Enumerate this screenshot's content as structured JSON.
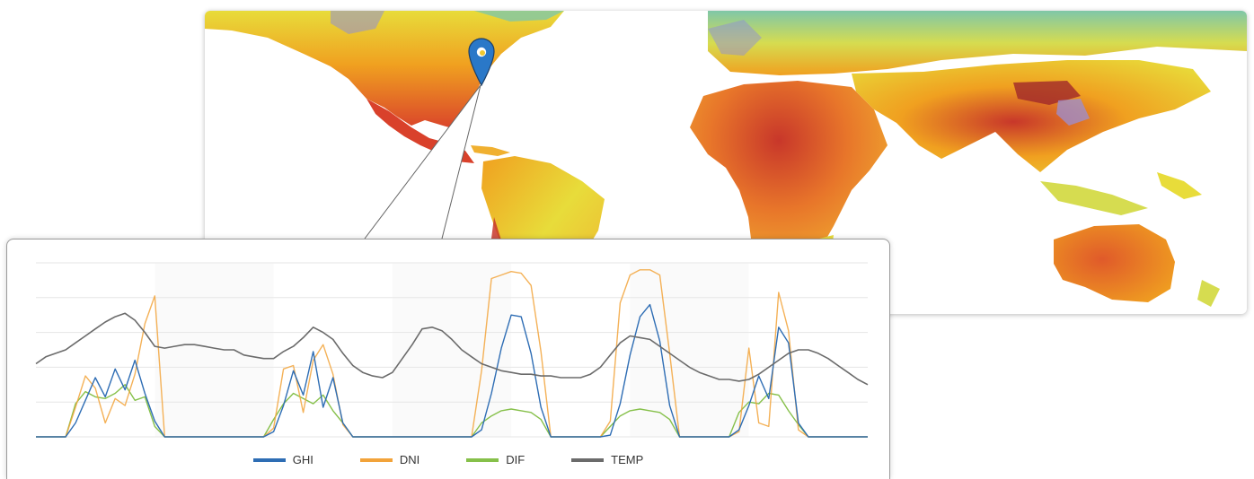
{
  "colors": {
    "GHI": "#2e6db4",
    "DNI": "#f2a33a",
    "DIF": "#86c04a",
    "TEMP": "#6b6b6b",
    "map_hot": "#d9412b",
    "map_warm": "#f0a020",
    "map_mild": "#e8dc3a",
    "map_cool": "#7fc7a8",
    "map_cold": "#8f8fd6",
    "pin": "#2a78c8"
  },
  "map": {
    "pin_icon": "location-pin-icon"
  },
  "chart_data": {
    "type": "line",
    "title": "",
    "xlabel": "",
    "ylabel": "",
    "ylim": [
      0,
      100
    ],
    "grid": true,
    "legend_position": "bottom-center",
    "x": [
      0,
      2,
      4,
      6,
      8,
      10,
      12,
      14,
      16,
      18,
      20,
      22,
      24,
      26,
      28,
      30,
      32,
      34,
      36,
      38,
      40,
      42,
      44,
      46,
      48,
      50,
      52,
      54,
      56,
      58,
      60,
      62,
      64,
      66,
      68,
      70,
      72,
      74,
      76,
      78,
      80,
      82,
      84,
      86,
      88,
      90,
      92,
      94,
      96,
      98,
      100,
      102,
      104,
      106,
      108,
      110,
      112,
      114,
      116,
      118,
      120,
      122,
      124,
      126,
      128,
      130,
      132,
      134,
      136,
      138,
      140,
      142,
      144,
      146,
      148,
      150,
      152,
      154,
      156,
      158,
      160,
      162,
      164,
      166,
      168
    ],
    "series": [
      {
        "name": "GHI",
        "values": [
          0,
          0,
          0,
          0,
          8,
          21,
          34,
          23,
          39,
          27,
          44,
          25,
          9,
          0,
          0,
          0,
          0,
          0,
          0,
          0,
          0,
          0,
          0,
          0,
          3,
          18,
          38,
          24,
          49,
          17,
          34,
          8,
          0,
          0,
          0,
          0,
          0,
          0,
          0,
          0,
          0,
          0,
          0,
          0,
          0,
          4,
          25,
          51,
          70,
          69,
          48,
          17,
          0,
          0,
          0,
          0,
          0,
          0,
          1,
          19,
          47,
          69,
          76,
          55,
          18,
          0,
          0,
          0,
          0,
          0,
          0,
          4,
          18,
          35,
          22,
          63,
          54,
          8,
          0,
          0,
          0,
          0,
          0,
          0,
          0
        ]
      },
      {
        "name": "DNI",
        "values": [
          0,
          0,
          0,
          0,
          17,
          35,
          28,
          8,
          22,
          18,
          36,
          65,
          81,
          0,
          0,
          0,
          0,
          0,
          0,
          0,
          0,
          0,
          0,
          0,
          5,
          39,
          41,
          14,
          44,
          53,
          36,
          7,
          0,
          0,
          0,
          0,
          0,
          0,
          0,
          0,
          0,
          0,
          0,
          0,
          0,
          38,
          91,
          93,
          95,
          94,
          87,
          49,
          0,
          0,
          0,
          0,
          0,
          0,
          9,
          77,
          93,
          96,
          96,
          93,
          48,
          0,
          0,
          0,
          0,
          0,
          0,
          3,
          51,
          8,
          6,
          83,
          61,
          4,
          0,
          0,
          0,
          0,
          0,
          0,
          0
        ]
      },
      {
        "name": "DIF",
        "values": [
          0,
          0,
          0,
          0,
          19,
          26,
          23,
          22,
          25,
          30,
          21,
          23,
          6,
          0,
          0,
          0,
          0,
          0,
          0,
          0,
          0,
          0,
          0,
          0,
          10,
          19,
          25,
          22,
          19,
          24,
          15,
          8,
          0,
          0,
          0,
          0,
          0,
          0,
          0,
          0,
          0,
          0,
          0,
          0,
          0,
          8,
          12,
          15,
          16,
          15,
          14,
          10,
          0,
          0,
          0,
          0,
          0,
          0,
          6,
          12,
          15,
          16,
          15,
          14,
          10,
          0,
          0,
          0,
          0,
          0,
          0,
          14,
          20,
          19,
          25,
          24,
          15,
          7,
          0,
          0,
          0,
          0,
          0,
          0,
          0
        ]
      },
      {
        "name": "TEMP",
        "values": [
          42,
          46,
          48,
          50,
          54,
          58,
          62,
          66,
          69,
          71,
          67,
          60,
          52,
          51,
          52,
          53,
          53,
          52,
          51,
          50,
          50,
          47,
          46,
          45,
          45,
          49,
          52,
          57,
          63,
          60,
          56,
          48,
          41,
          37,
          35,
          34,
          37,
          45,
          53,
          62,
          63,
          61,
          56,
          50,
          46,
          42,
          40,
          38,
          37,
          36,
          36,
          35,
          35,
          34,
          34,
          34,
          36,
          40,
          47,
          54,
          58,
          57,
          56,
          52,
          48,
          44,
          40,
          37,
          35,
          33,
          33,
          32,
          33,
          36,
          40,
          44,
          48,
          50,
          50,
          48,
          45,
          41,
          37,
          33,
          30
        ]
      }
    ]
  },
  "map_series_svg_paths": "drawn-by-script"
}
